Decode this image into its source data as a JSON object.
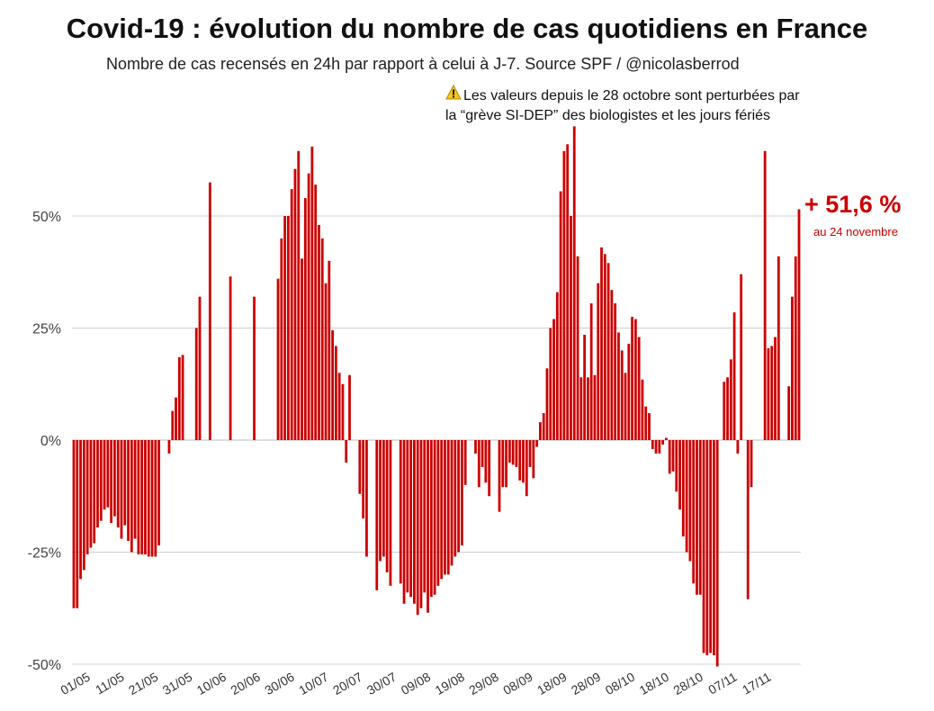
{
  "title": "Covid-19 : évolution du nombre de cas quotidiens en France",
  "subtitle": "Nombre de cas recensés en 24h par rapport à celui à J-7. Source SPF / @nicolasberrod",
  "note": {
    "icon": "warning-icon",
    "line1": "Les valeurs depuis le 28 octobre sont perturbées par",
    "line2": "la “grève SI-DEP” des biologistes et les jours fériés"
  },
  "callout": {
    "value": "+ 51,6 %",
    "date": "au 24 novembre"
  },
  "colors": {
    "bar": "#cc0000",
    "grid": "#d0d0d0",
    "callout": "#cc0000"
  },
  "chart_data": {
    "type": "bar",
    "ylabel": "",
    "xlabel": "",
    "ylim": [
      -50,
      70
    ],
    "yticks": [
      {
        "value": 50,
        "label": "50%"
      },
      {
        "value": 25,
        "label": "25%"
      },
      {
        "value": 0,
        "label": "0%"
      },
      {
        "value": -25,
        "label": "-25%"
      },
      {
        "value": -50,
        "label": "-50%"
      }
    ],
    "start_label": "01/05",
    "xtick_labels": [
      "01/05",
      "11/05",
      "21/05",
      "31/05",
      "10/06",
      "20/06",
      "30/06",
      "10/07",
      "20/07",
      "30/07",
      "09/08",
      "19/08",
      "29/08",
      "08/09",
      "18/09",
      "28/09",
      "08/10",
      "18/10",
      "28/10",
      "07/11",
      "17/11"
    ],
    "values": [
      -37.5,
      -37.5,
      -31,
      -29,
      -25.5,
      -24,
      -23,
      -19.5,
      -18,
      -15.5,
      -15,
      -18.5,
      -17,
      -19.5,
      -22,
      -19,
      -22.5,
      -25,
      -22,
      -25.5,
      -25.5,
      -25.5,
      -26,
      -26,
      -26,
      -23.5,
      null,
      null,
      -3,
      6.5,
      9.5,
      18.5,
      19,
      null,
      null,
      null,
      25,
      32,
      null,
      null,
      57.5,
      null,
      null,
      null,
      null,
      null,
      36.5,
      null,
      null,
      null,
      null,
      null,
      null,
      32,
      null,
      null,
      null,
      null,
      null,
      null,
      36,
      45,
      50,
      50,
      56,
      60.5,
      64.5,
      40.5,
      54,
      59.5,
      65.5,
      57,
      48,
      45,
      35,
      40,
      24.5,
      21,
      15,
      12.5,
      -5,
      14.5,
      null,
      null,
      -12,
      -17.5,
      -26,
      null,
      null,
      -33.5,
      -27,
      -26,
      -29.5,
      -32.5,
      null,
      null,
      -32,
      -36.5,
      -34,
      -35,
      -36.5,
      -39,
      -37.5,
      -34,
      -38.5,
      -35,
      -34.5,
      -32.5,
      -31,
      -30,
      -30,
      -28,
      -26,
      -25,
      -23.5,
      -10,
      null,
      null,
      -3,
      -10.5,
      -6,
      -9.5,
      -12.5,
      null,
      null,
      -16,
      -10.5,
      -10.5,
      -5,
      -5.5,
      -6,
      -9,
      -9.5,
      -12.5,
      -6,
      -8.5,
      -1.5,
      4,
      6,
      16,
      25,
      27,
      33,
      55.5,
      64.5,
      66,
      50,
      70,
      41,
      14,
      23.5,
      14,
      30.5,
      14.5,
      35,
      43,
      41.5,
      39.5,
      33.5,
      30.5,
      24,
      20,
      15,
      21.5,
      27.5,
      27,
      23,
      13.5,
      7.5,
      6,
      -2,
      -3,
      -3,
      -1,
      0.5,
      -7.5,
      -7,
      -11.5,
      -15.5,
      -21.5,
      -25,
      -27,
      -32,
      -34.5,
      -34.5,
      -47.5,
      -48,
      -47.5,
      -48,
      -50.5,
      null,
      13,
      14,
      18,
      28.5,
      -3,
      37,
      null,
      -35.5,
      -10.5,
      null,
      null,
      null,
      64.5,
      20.5,
      21,
      23,
      41,
      null,
      null,
      12,
      32,
      41,
      51.5
    ]
  }
}
